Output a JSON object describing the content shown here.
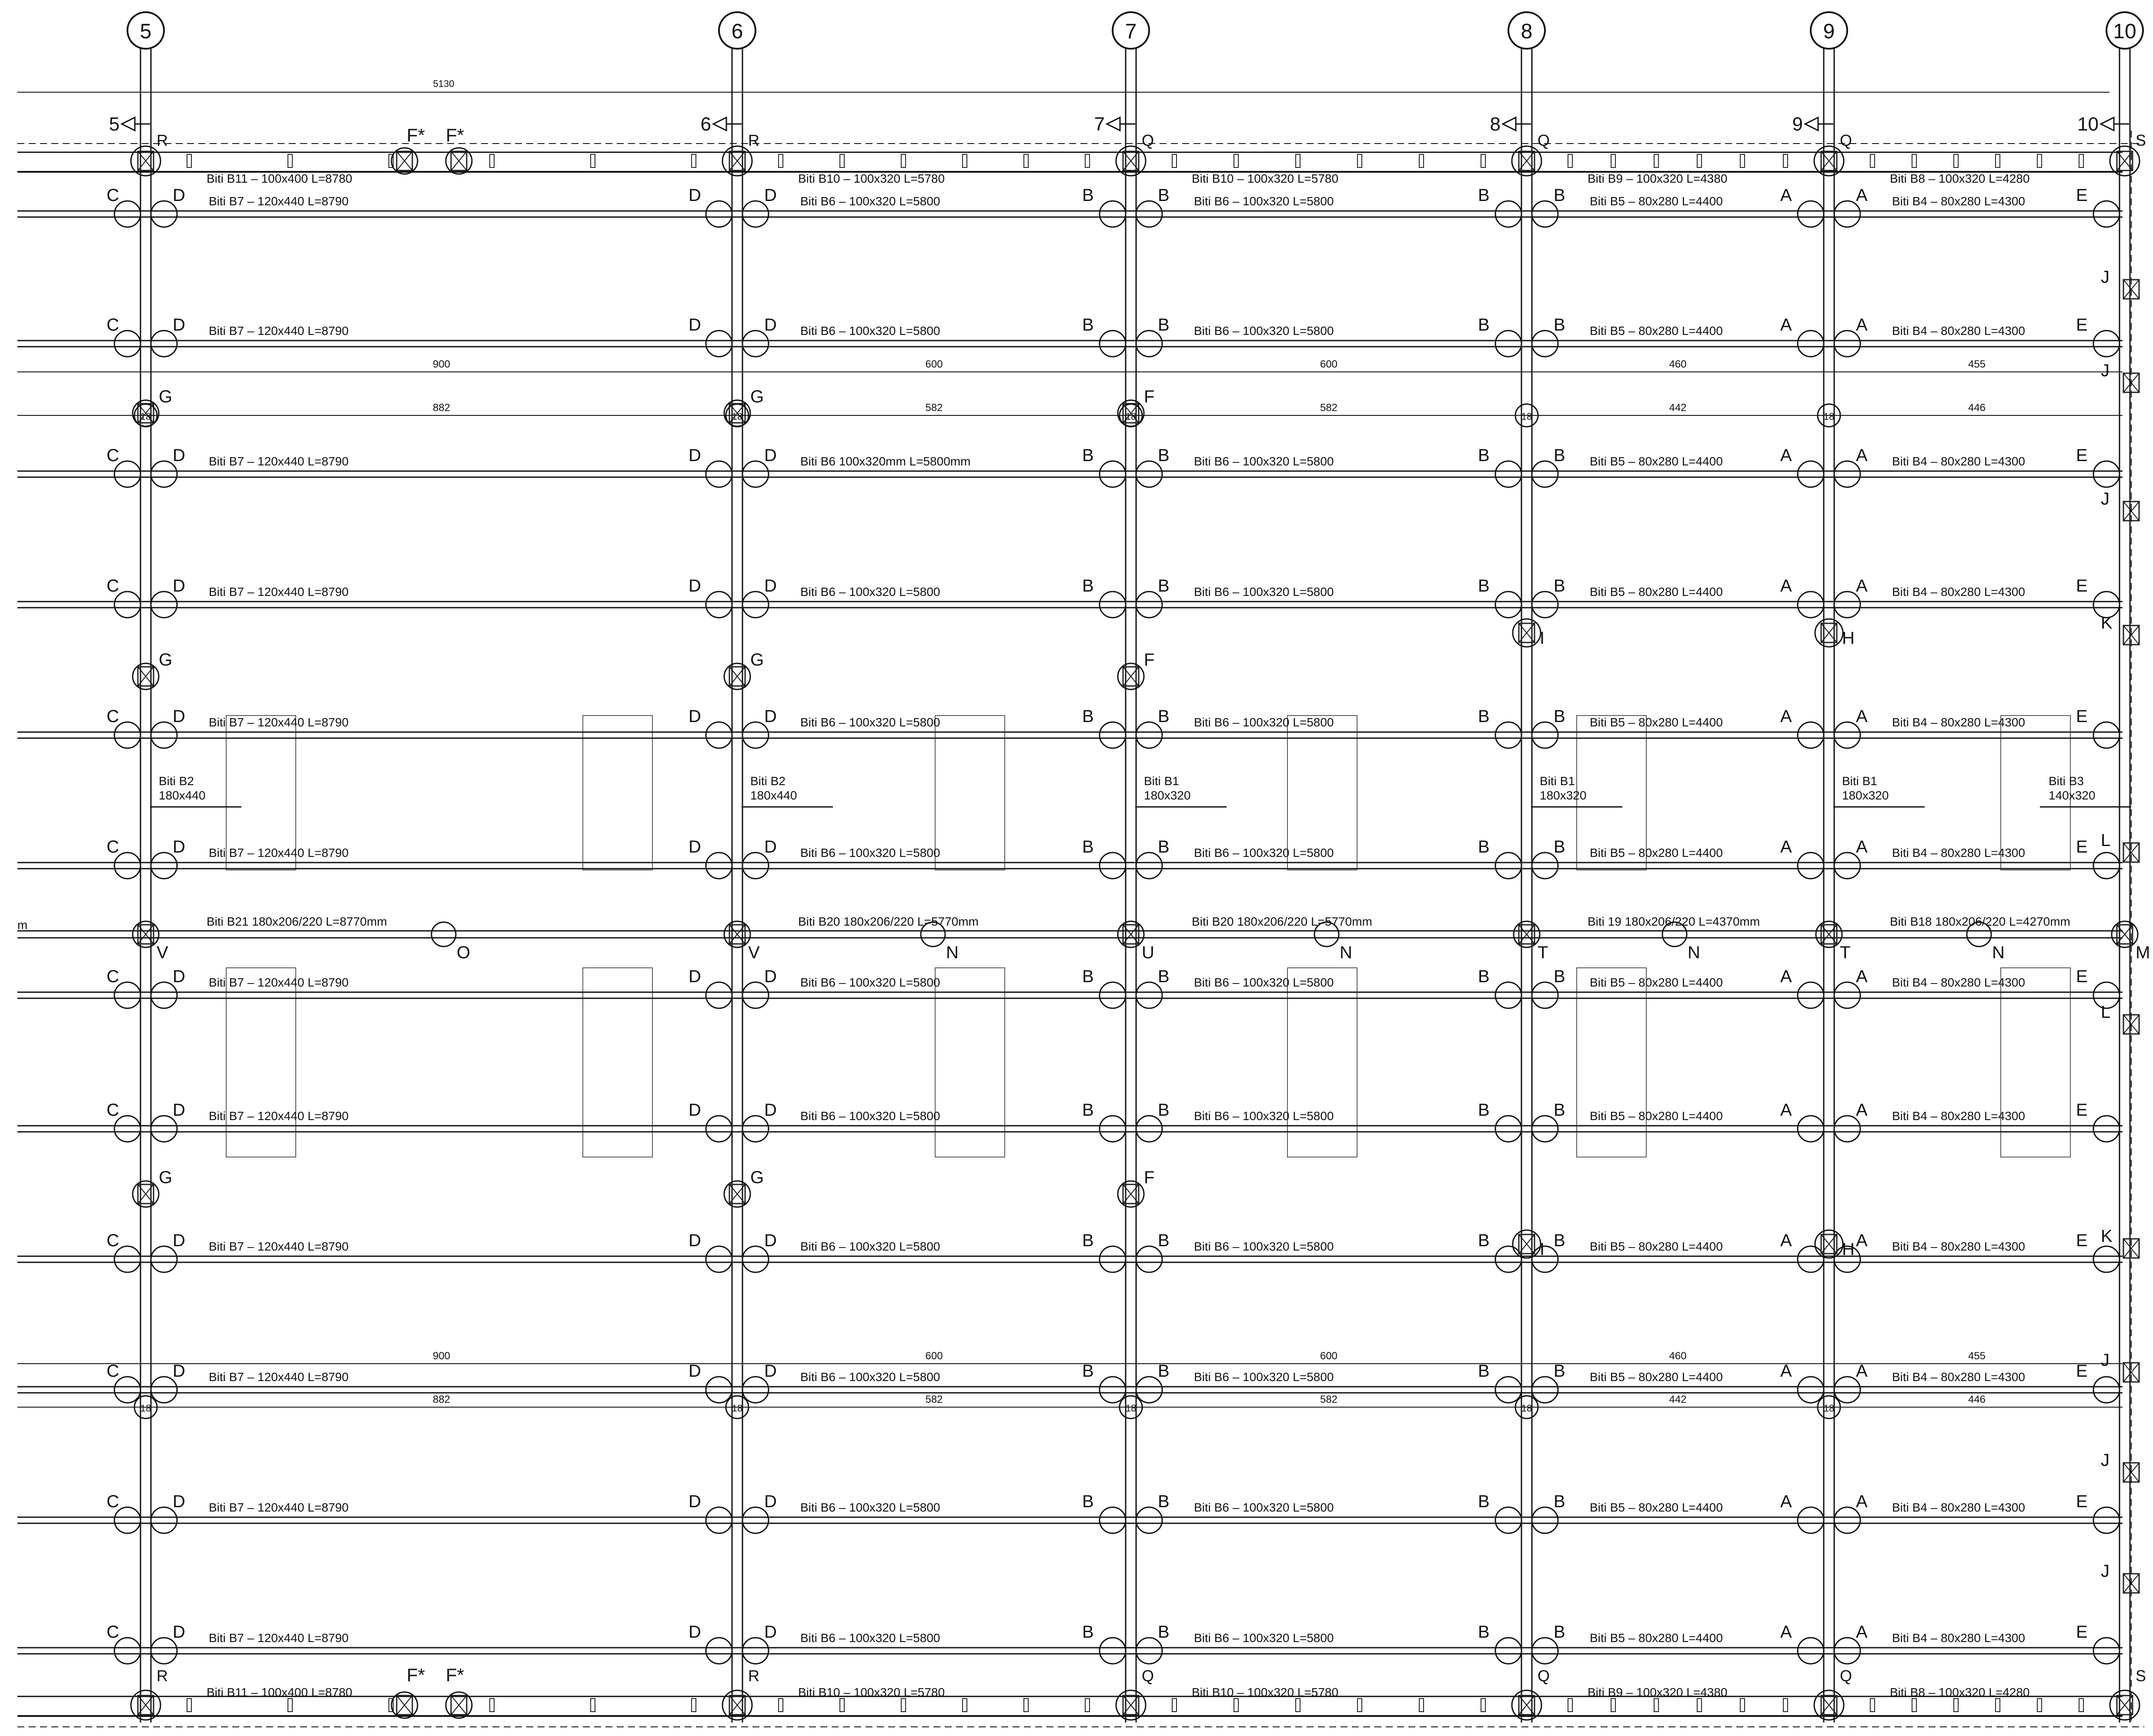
{
  "grid_axes": [
    "5",
    "6",
    "7",
    "8",
    "9",
    "10"
  ],
  "top_dimension": "5130",
  "section_marks": [
    "5",
    "6",
    "7",
    "8",
    "9",
    "10"
  ],
  "connection_letters": [
    "A",
    "B",
    "C",
    "D",
    "E",
    "F",
    "F*",
    "G",
    "H",
    "I",
    "J",
    "K",
    "L",
    "M",
    "N",
    "O",
    "Q",
    "R",
    "S",
    "T",
    "U",
    "V"
  ],
  "top_edge_nodes": {
    "bay1": [
      "R",
      "F*",
      "F*"
    ],
    "bay2": [
      "R"
    ],
    "bay3": [
      "Q"
    ],
    "bay4": [
      "Q"
    ],
    "bay5": [
      "Q"
    ],
    "bay6": [
      "S"
    ]
  },
  "edge_beams_top": [
    "Biti  B11  –  100x400  L=8780",
    "Biti  B10  –  100x320  L=5780",
    "Biti  B10  –  100x320  L=5780",
    "Biti  B9  –  100x320  L=4380",
    "Biti  B8  –  100x320  L=4280"
  ],
  "edge_beams_bottom": [
    "Biti  B11  –  100x400  L=8780",
    "Biti  B10  –  100x320  L=5780",
    "Biti  B10  –  100x320  L=5780",
    "Biti  B9  –  100x320  L=4380",
    "Biti  B8  –  100x320  L=4280"
  ],
  "beam_labels": {
    "b7": "Biti  B7  –  120x440  L=8790",
    "b6": "Biti  B6  –  100x320  L=5800",
    "b6_alt": "Biti  B6  100x320mm  L=5800mm",
    "b5": "Biti  B5  –  80x280  L=4400",
    "b4": "Biti  B4  –  80x280  L=4300"
  },
  "mid_beams": [
    "Biti  B21  180x206/220  L=8770mm",
    "Biti  B20  180x206/220  L=5770mm",
    "Biti  B20  180x206/220  L=5770mm",
    "Biti  19  180x206/220  L=4370mm",
    "Biti  B18  180x206/220  L=4270mm"
  ],
  "mid_beam_left_fragment": "m",
  "mid_nodes": [
    "V",
    "V",
    "U",
    "T",
    "T",
    "M"
  ],
  "mid_sub_nodes": [
    "O",
    "N",
    "N",
    "N",
    "N"
  ],
  "cross_beams": [
    {
      "name": "Biti  B2",
      "size": "180x440"
    },
    {
      "name": "Biti  B2",
      "size": "180x440"
    },
    {
      "name": "Biti  B1",
      "size": "180x320"
    },
    {
      "name": "Biti  B1",
      "size": "180x320"
    },
    {
      "name": "Biti  B1",
      "size": "180x320"
    },
    {
      "name": "Biti  B3",
      "size": "140x320"
    }
  ],
  "dims_outer": [
    "900",
    "600",
    "600",
    "460",
    "455"
  ],
  "dims_inner": [
    "882",
    "582",
    "582",
    "442",
    "446"
  ],
  "column_size_mark": "18",
  "bottom_edge_nodes": {
    "bay1": [
      "R",
      "F*",
      "F*"
    ],
    "bay2": [
      "R"
    ],
    "bay3": [
      "Q"
    ],
    "bay4": [
      "Q"
    ],
    "bay5": [
      "Q"
    ],
    "bay6": [
      "S"
    ]
  }
}
